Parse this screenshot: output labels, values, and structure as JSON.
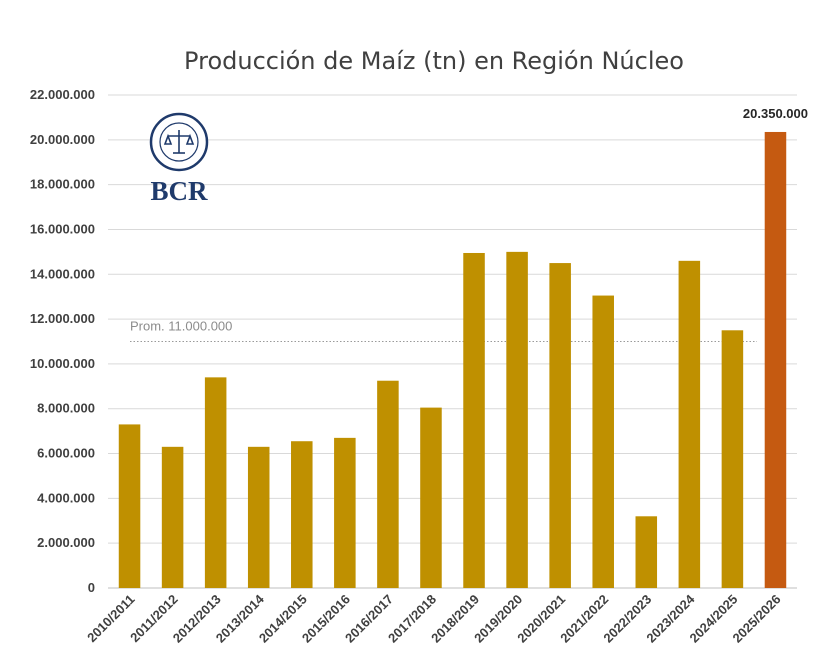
{
  "chart_data": {
    "type": "bar",
    "title": "Producción de Maíz (tn) en Región Núcleo",
    "xlabel": "",
    "ylabel": "",
    "ylim": [
      0,
      22000000
    ],
    "yticks": [
      0,
      2000000,
      4000000,
      6000000,
      8000000,
      10000000,
      12000000,
      14000000,
      16000000,
      18000000,
      20000000,
      22000000
    ],
    "ytick_labels": [
      "0",
      "2.000.000",
      "4.000.000",
      "6.000.000",
      "8.000.000",
      "10.000.000",
      "12.000.000",
      "14.000.000",
      "16.000.000",
      "18.000.000",
      "20.000.000",
      "22.000.000"
    ],
    "categories": [
      "2010/2011",
      "2011/2012",
      "2012/2013",
      "2013/2014",
      "2014/2015",
      "2015/2016",
      "2016/2017",
      "2017/2018",
      "2018/2019",
      "2019/2020",
      "2020/2021",
      "2021/2022",
      "2022/2023",
      "2023/2024",
      "2024/2025",
      "2025/2026"
    ],
    "values": [
      7300000,
      6300000,
      9400000,
      6300000,
      6550000,
      6700000,
      9250000,
      8050000,
      14950000,
      15000000,
      14500000,
      13050000,
      3200000,
      14600000,
      11500000,
      20350000
    ],
    "highlight_index": 15,
    "bar_color": "#bf9000",
    "highlight_color": "#c55a11",
    "data_labels": [
      {
        "index": 15,
        "text": "20.350.000"
      }
    ],
    "reference_line": {
      "value": 11000000,
      "label": "Prom. 11.000.000",
      "style": "dotted"
    },
    "grid": true,
    "legend": "none"
  },
  "logo": {
    "text": "BCR",
    "seal_text": "BOLSA DE COMERCIO DE ROSARIO"
  }
}
